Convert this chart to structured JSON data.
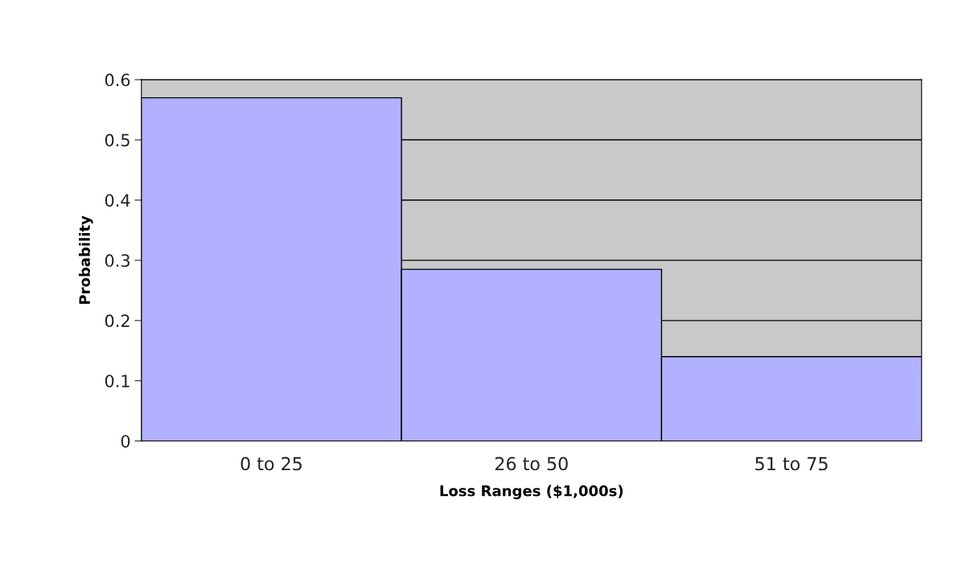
{
  "chart_data": {
    "type": "bar",
    "xlabel": "Loss Ranges ($1,000s)",
    "ylabel": "Probability",
    "categories": [
      "0 to 25",
      "26 to 50",
      "51 to 75"
    ],
    "values": [
      0.57,
      0.285,
      0.14
    ],
    "color": "#b1b1ff",
    "ylim": [
      0,
      0.6
    ],
    "yticks": [
      0,
      0.1,
      0.2,
      0.3,
      0.4,
      0.5,
      0.6
    ],
    "grid": "y",
    "legend": false
  }
}
